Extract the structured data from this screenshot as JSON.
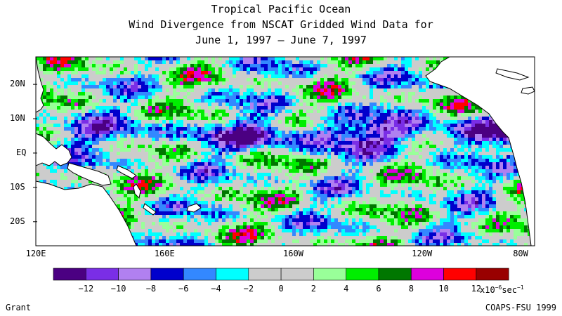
{
  "title_lines": [
    "Tropical Pacific Ocean",
    "Wind Divergence from NSCAT Gridded Wind Data for",
    "June 1, 1997 – June 7, 1997"
  ],
  "map": {
    "lon_range": [
      120,
      275
    ],
    "lat_range": [
      -27,
      28
    ],
    "lat_labels": [
      {
        "text": "20N",
        "lat": 20
      },
      {
        "text": "10N",
        "lat": 10
      },
      {
        "text": "EQ",
        "lat": 0
      },
      {
        "text": "10S",
        "lat": -10
      },
      {
        "text": "20S",
        "lat": -20
      }
    ],
    "lon_labels": [
      {
        "text": "120E",
        "lon": 120
      },
      {
        "text": "160E",
        "lon": 160
      },
      {
        "text": "160W",
        "lon": 200
      },
      {
        "text": "120W",
        "lon": 240
      },
      {
        "text": "80W",
        "lon": 280
      }
    ]
  },
  "colorbar": {
    "colors": [
      "#4b0082",
      "#7a2ee6",
      "#b180f0",
      "#0000cc",
      "#3388ff",
      "#00ffff",
      "#cccccc",
      "#cccccc",
      "#99ff99",
      "#00ee00",
      "#007700",
      "#dd00dd",
      "#ff0000",
      "#990000"
    ],
    "ticks": [
      "−12",
      "−10",
      "−8",
      "−6",
      "−4",
      "−2",
      "0",
      "2",
      "4",
      "6",
      "8",
      "10",
      "12"
    ],
    "unit_prefix": "x10",
    "unit_exp": "−6",
    "unit_suffix": "sec",
    "unit_suffix_exp": "−1"
  },
  "credits": {
    "left": "Grant",
    "right": "COAPS-FSU 1999"
  }
}
